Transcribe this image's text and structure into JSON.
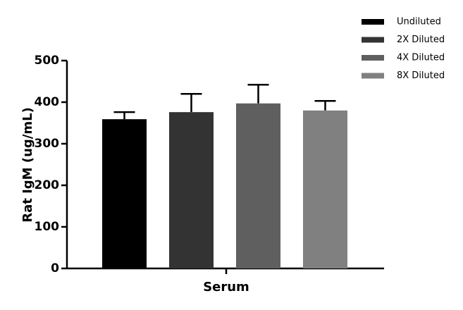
{
  "chart_data": {
    "type": "bar",
    "categories": [
      "Serum"
    ],
    "y_label": "Rat IgM (ug/mL)",
    "series": [
      {
        "name": "Undiluted",
        "color": "#000000",
        "values": [
          359
        ],
        "errors": [
          17
        ]
      },
      {
        "name": "2X Diluted",
        "color": "#333333",
        "values": [
          376
        ],
        "errors": [
          44
        ]
      },
      {
        "name": "4X Diluted",
        "color": "#5f5f5f",
        "values": [
          397
        ],
        "errors": [
          45
        ]
      },
      {
        "name": "8X Diluted",
        "color": "#808080",
        "values": [
          380
        ],
        "errors": [
          23
        ]
      }
    ],
    "ylim": [
      0,
      500
    ],
    "yticks": [
      0,
      100,
      200,
      300,
      400,
      500
    ],
    "grid": false
  }
}
